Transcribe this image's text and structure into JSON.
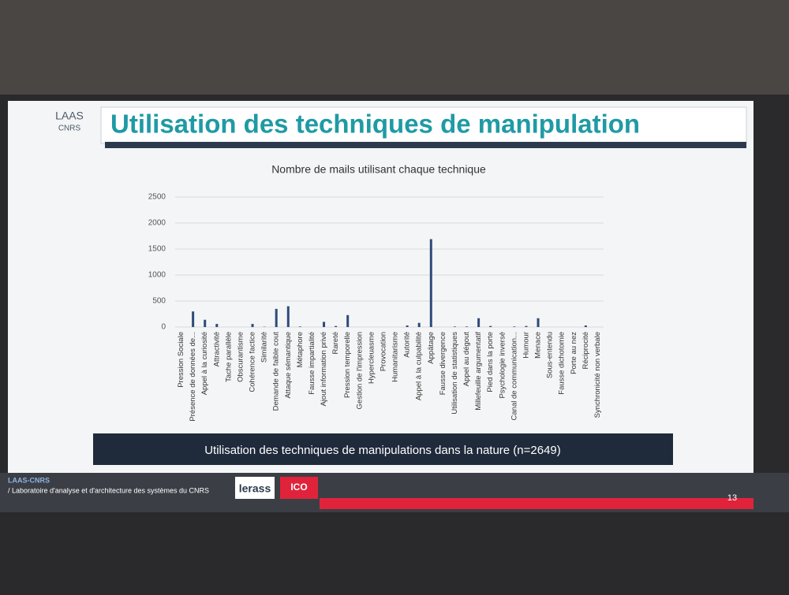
{
  "slide": {
    "logo_top": "LAAS",
    "logo_bottom": "CNRS",
    "title": "Utilisation des techniques de manipulation",
    "caption": "Utilisation des techniques de manipulations dans la nature (n=2649)",
    "footer_org": "LAAS-CNRS",
    "footer_text": "/ Laboratoire d'analyse et d'architecture des systèmes du CNRS",
    "partner_1": "lerass",
    "partner_2": "ICO",
    "page_number": "13"
  },
  "chart_data": {
    "type": "bar",
    "title": "Nombre de mails utilisant chaque technique",
    "categories": [
      "Pression Sociale",
      "Présence de données de...",
      "Appel à la curiosité",
      "Attractivité",
      "Tache parallèle",
      "Obscurantisme",
      "Cohérence factice",
      "Similarité",
      "Demande de faible cout",
      "Attaque sémantique",
      "Métaphore",
      "Fausse impartialité",
      "Ajout information privé",
      "Rareté",
      "Pression temporelle",
      "Gestion de l'impression",
      "Hypercleuasme",
      "Provocation",
      "Humanitarisme",
      "Autorité",
      "Appel à la culpabilité",
      "Appâtage",
      "Fausse divergence",
      "Utilisation de statistiques",
      "Appel au dégout",
      "Millefeuille argumentatif",
      "Pied dans la porte",
      "Psychologie inversé",
      "Canal de communication...",
      "Humour",
      "Menace",
      "Sous-entendu",
      "Fausse dichotomie",
      "Porte au nez",
      "Réciprocité",
      "Synchronicité non verbale"
    ],
    "values": [
      0,
      300,
      140,
      60,
      0,
      0,
      60,
      5,
      350,
      400,
      10,
      0,
      100,
      20,
      230,
      0,
      0,
      0,
      0,
      30,
      80,
      1690,
      0,
      10,
      10,
      170,
      20,
      0,
      10,
      20,
      170,
      0,
      0,
      0,
      30,
      0
    ],
    "color": "#2e4a7a",
    "ylim": [
      0,
      2500
    ],
    "yticks": [
      0,
      500,
      1000,
      1500,
      2000,
      2500
    ],
    "grid": true
  }
}
